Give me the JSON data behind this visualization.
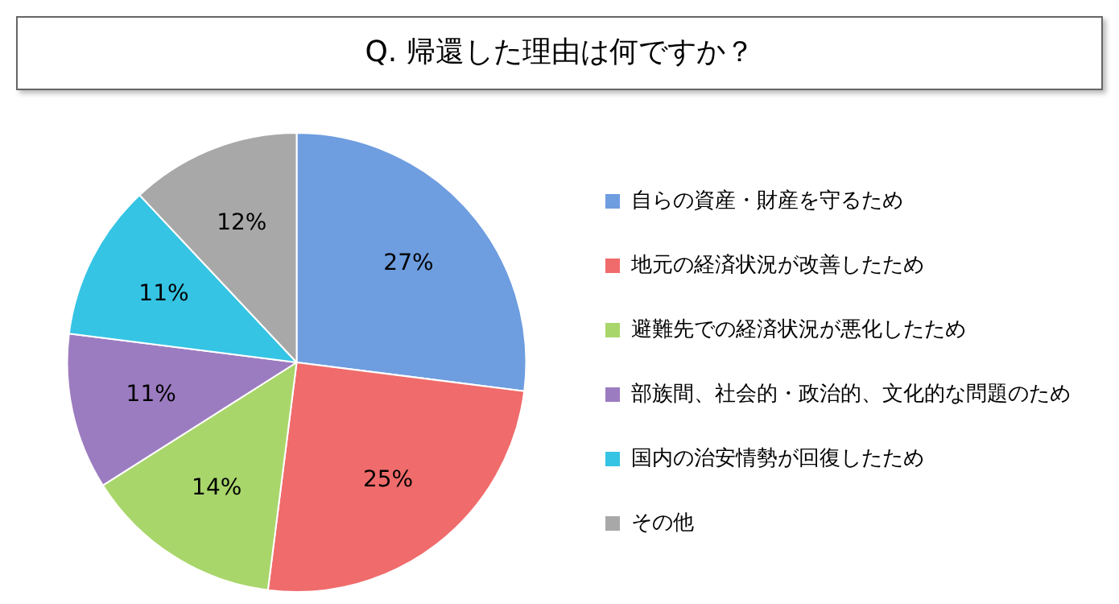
{
  "chart_data": {
    "type": "pie",
    "title": "Q. 帰還した理由は何ですか？",
    "categories": [
      "自らの資産・財産を守るため",
      "地元の経済状況が改善したため",
      "避難先での経済状況が悪化したため",
      "部族間、社会的・政治的、文化的な問題のため",
      "国内の治安情勢が回復したため",
      "その他"
    ],
    "values": [
      27,
      25,
      14,
      11,
      11,
      12
    ],
    "value_labels": [
      "27%",
      "25%",
      "14%",
      "11%",
      "11%",
      "12%"
    ],
    "colors": [
      "#6e9de0",
      "#f06b6b",
      "#a9d66b",
      "#9c7cc0",
      "#35c4e4",
      "#a8a8a8"
    ],
    "legend": "right"
  }
}
